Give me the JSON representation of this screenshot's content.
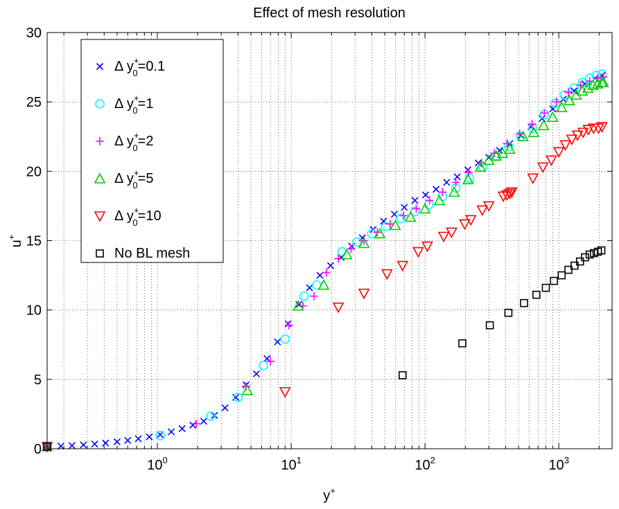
{
  "chart_data": {
    "type": "scatter",
    "title": "Effect of mesh resolution",
    "xlabel": "y+",
    "ylabel": "u+",
    "xscale": "log",
    "xlim": [
      0.15,
      2500
    ],
    "ylim": [
      0,
      30
    ],
    "grid": true,
    "legend_position": "top-left",
    "y_ticks": [
      0,
      5,
      10,
      15,
      20,
      25,
      30
    ],
    "x_ticks": [
      {
        "value": 1,
        "base": "10",
        "exp": "0"
      },
      {
        "value": 10,
        "base": "10",
        "exp": "1"
      },
      {
        "value": 100,
        "base": "10",
        "exp": "2"
      },
      {
        "value": 1000,
        "base": "10",
        "exp": "3"
      }
    ],
    "series": [
      {
        "name": "Δ y0+=0.1",
        "legend_prefix": "Δ y",
        "legend_sup": "+",
        "legend_sub": "0",
        "legend_suffix": "=0.1",
        "marker": "x",
        "color": "#0000ff",
        "x": [
          0.15,
          0.19,
          0.23,
          0.28,
          0.34,
          0.41,
          0.5,
          0.6,
          0.72,
          0.87,
          1.05,
          1.27,
          1.53,
          1.84,
          2.22,
          2.67,
          3.2,
          3.85,
          4.6,
          5.5,
          6.6,
          7.9,
          9.5,
          11.4,
          13.7,
          16.4,
          19.7,
          23.6,
          28.3,
          34,
          41,
          49,
          59,
          70,
          84,
          101,
          121,
          145,
          174,
          209,
          250,
          300,
          360,
          430,
          520,
          620,
          750,
          900,
          1080,
          1300,
          1560,
          1870,
          2100
        ],
        "y": [
          0.15,
          0.19,
          0.23,
          0.28,
          0.34,
          0.41,
          0.5,
          0.6,
          0.72,
          0.86,
          1.02,
          1.22,
          1.45,
          1.7,
          1.98,
          2.4,
          2.95,
          3.7,
          4.6,
          5.4,
          6.5,
          7.7,
          9.0,
          10.4,
          11.6,
          12.5,
          13.2,
          13.8,
          14.6,
          15.2,
          15.8,
          16.4,
          16.9,
          17.4,
          17.9,
          18.3,
          18.7,
          19.2,
          19.6,
          20.1,
          20.6,
          21.0,
          21.5,
          22.0,
          22.6,
          23.2,
          23.8,
          24.5,
          25.2,
          25.8,
          26.3,
          26.7,
          26.9
        ]
      },
      {
        "name": "Δ y0+=1",
        "legend_prefix": "Δ y",
        "legend_sup": "+",
        "legend_sub": "0",
        "legend_suffix": "=1",
        "marker": "circle",
        "color": "#00ffff",
        "x": [
          0.15,
          1.05,
          2.5,
          4.0,
          6.2,
          9.0,
          12.5,
          15.5,
          24,
          31,
          40,
          51,
          66,
          84,
          107,
          135,
          170,
          215,
          270,
          340,
          420,
          520,
          640,
          780,
          940,
          1100,
          1300,
          1500,
          1700,
          1900,
          2100
        ],
        "y": [
          0.15,
          0.95,
          2.35,
          3.7,
          6.0,
          7.9,
          11.0,
          11.8,
          14.2,
          14.9,
          15.5,
          16.0,
          16.6,
          17.1,
          17.6,
          18.2,
          18.8,
          19.5,
          20.3,
          21.1,
          21.8,
          22.5,
          23.1,
          24.1,
          24.9,
          25.5,
          26.0,
          26.4,
          26.7,
          26.9,
          27.0
        ]
      },
      {
        "name": "Δ y0+=2",
        "legend_prefix": "Δ y",
        "legend_sup": "+",
        "legend_sub": "0",
        "legend_suffix": "=2",
        "marker": "plus",
        "color": "#ff00ff",
        "x": [
          0.15,
          1.95,
          4.6,
          7.0,
          9.6,
          12.2,
          14.8,
          18.3,
          22.5,
          28,
          35,
          44,
          55,
          69,
          86,
          108,
          135,
          170,
          212,
          265,
          330,
          410,
          510,
          630,
          780,
          960,
          1180,
          1450,
          1700,
          1950,
          2150
        ],
        "y": [
          0.15,
          1.8,
          4.5,
          6.3,
          8.9,
          10.3,
          11.0,
          12.7,
          13.7,
          14.4,
          15.0,
          15.6,
          16.2,
          16.8,
          17.3,
          17.9,
          18.5,
          19.2,
          19.9,
          20.6,
          21.3,
          22.0,
          22.7,
          23.4,
          24.2,
          25.0,
          25.7,
          26.2,
          26.5,
          26.7,
          26.8
        ]
      },
      {
        "name": "Δ y0+=5",
        "legend_prefix": "Δ y",
        "legend_sup": "+",
        "legend_sub": "0",
        "legend_suffix": "=5",
        "marker": "triangle-up",
        "color": "#00cc00",
        "x": [
          0.15,
          4.7,
          11.3,
          17.5,
          26,
          35,
          46,
          60,
          78,
          100,
          128,
          165,
          210,
          260,
          300,
          340,
          380,
          430,
          540,
          650,
          770,
          900,
          1050,
          1200,
          1350,
          1500,
          1650,
          1800,
          1950,
          2100,
          2150
        ],
        "y": [
          0.15,
          4.2,
          10.3,
          11.8,
          14.0,
          14.8,
          15.5,
          16.1,
          16.7,
          17.3,
          17.9,
          18.5,
          19.4,
          20.3,
          20.8,
          21.1,
          21.3,
          21.6,
          22.5,
          22.8,
          23.3,
          23.9,
          24.6,
          25.1,
          25.5,
          25.8,
          26.0,
          26.2,
          26.3,
          26.4,
          26.4
        ]
      },
      {
        "name": "Δ y0+=10",
        "legend_prefix": "Δ y",
        "legend_sup": "+",
        "legend_sub": "0",
        "legend_suffix": "=10",
        "marker": "triangle-down",
        "color": "#ff0000",
        "x": [
          0.15,
          9.0,
          22.5,
          35,
          52,
          68,
          89,
          104,
          138,
          158,
          198,
          220,
          268,
          300,
          385,
          410,
          430,
          445,
          640,
          760,
          880,
          1000,
          1120,
          1250,
          1380,
          1520,
          1660,
          1820,
          1980,
          2100
        ],
        "y": [
          0.15,
          4.1,
          10.2,
          11.2,
          12.6,
          13.2,
          14.2,
          14.6,
          15.3,
          15.6,
          16.2,
          16.5,
          17.2,
          17.5,
          18.2,
          18.3,
          18.4,
          18.5,
          19.5,
          20.3,
          20.8,
          21.4,
          21.9,
          22.3,
          22.6,
          22.8,
          23.0,
          23.1,
          23.1,
          23.2
        ]
      },
      {
        "name": "No BL mesh",
        "legend_prefix": "No BL mesh",
        "legend_sup": "",
        "legend_sub": "",
        "legend_suffix": "",
        "marker": "square",
        "color": "#000000",
        "x": [
          0.15,
          68,
          190,
          305,
          420,
          550,
          680,
          800,
          920,
          1050,
          1180,
          1310,
          1440,
          1570,
          1700,
          1830,
          1960,
          2080
        ],
        "y": [
          0.15,
          5.3,
          7.6,
          8.9,
          9.8,
          10.5,
          11.1,
          11.6,
          12.1,
          12.5,
          12.9,
          13.2,
          13.5,
          13.8,
          14.0,
          14.1,
          14.2,
          14.3
        ]
      }
    ]
  }
}
